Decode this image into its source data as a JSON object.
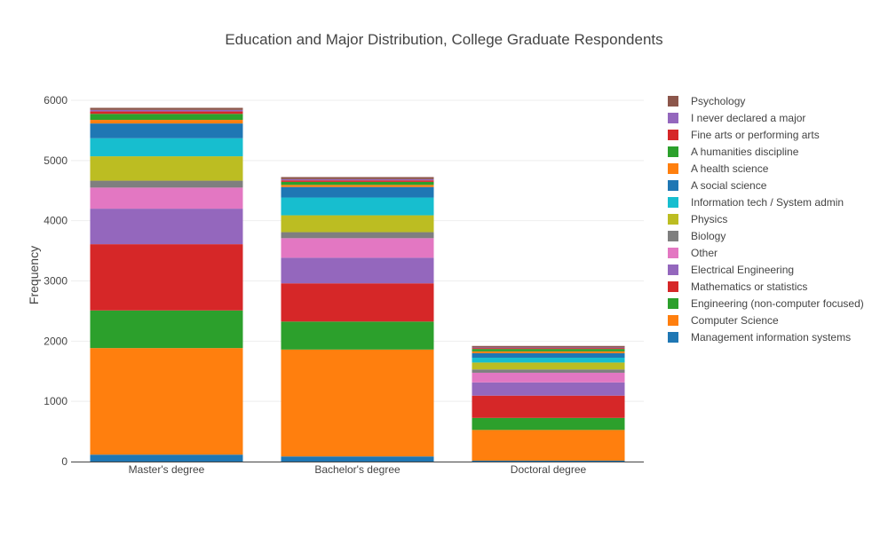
{
  "chart_data": {
    "type": "bar",
    "stacked": true,
    "title": "Education and Major Distribution, College Graduate Respondents",
    "xlabel": "",
    "ylabel": "Frequency",
    "ylim": [
      0,
      6000
    ],
    "yticks": [
      0,
      1000,
      2000,
      3000,
      4000,
      5000,
      6000
    ],
    "grid": true,
    "legend_position": "right",
    "categories": [
      "Master's degree",
      "Bachelor's degree",
      "Doctoral degree"
    ],
    "series": [
      {
        "name": "Management information systems",
        "color": "#1f77b4",
        "values": [
          115,
          85,
          15
        ]
      },
      {
        "name": "Computer Science",
        "color": "#ff7f0e",
        "values": [
          1770,
          1775,
          510
        ]
      },
      {
        "name": "Engineering (non-computer focused)",
        "color": "#2ca02c",
        "values": [
          625,
          465,
          200
        ]
      },
      {
        "name": "Mathematics or statistics",
        "color": "#d62728",
        "values": [
          1100,
          635,
          370
        ]
      },
      {
        "name": "Electrical Engineering",
        "color": "#9467bd",
        "values": [
          590,
          425,
          220
        ]
      },
      {
        "name": "Other",
        "color": "#e377c2",
        "values": [
          350,
          325,
          160
        ]
      },
      {
        "name": "Biology",
        "color": "#7f7f7f",
        "values": [
          115,
          100,
          55
        ]
      },
      {
        "name": "Physics",
        "color": "#bcbd22",
        "values": [
          405,
          280,
          115
        ]
      },
      {
        "name": "Information tech / System admin",
        "color": "#17becf",
        "values": [
          300,
          295,
          80
        ]
      },
      {
        "name": "A social science",
        "color": "#1f77b4",
        "values": [
          245,
          175,
          75
        ]
      },
      {
        "name": "A health science",
        "color": "#ff7f0e",
        "values": [
          60,
          35,
          30
        ]
      },
      {
        "name": "A humanities discipline",
        "color": "#2ca02c",
        "values": [
          100,
          50,
          40
        ]
      },
      {
        "name": "Fine arts or performing arts",
        "color": "#d62728",
        "values": [
          40,
          25,
          15
        ]
      },
      {
        "name": "I never declared a major",
        "color": "#9467bd",
        "values": [
          25,
          20,
          10
        ]
      },
      {
        "name": "Psychology",
        "color": "#8c564b",
        "values": [
          35,
          35,
          25
        ]
      }
    ]
  }
}
